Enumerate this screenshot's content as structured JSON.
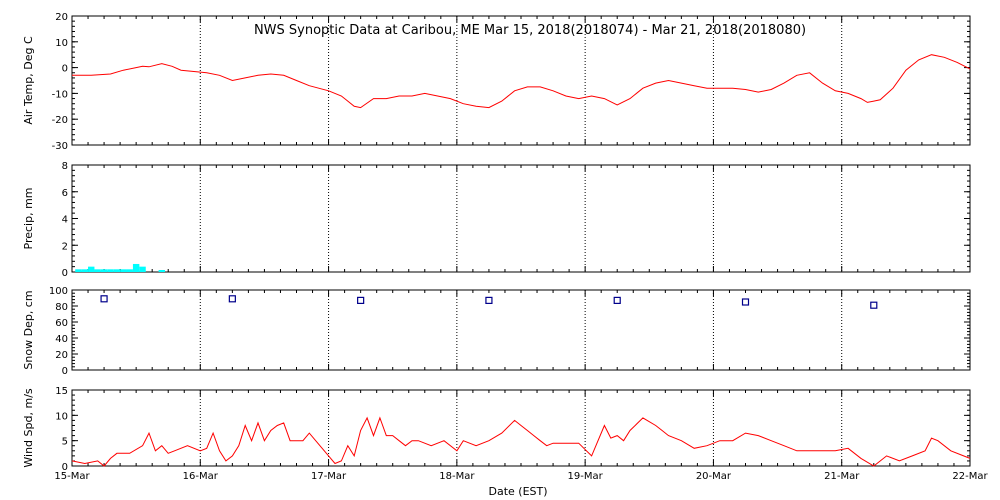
{
  "title": "NWS Synoptic Data at Caribou, ME    Mar 15, 2018(2018074) - Mar 21, 2018(2018080)",
  "xlabel": "Date (EST)",
  "x_ticks": [
    "15-Mar",
    "16-Mar",
    "17-Mar",
    "18-Mar",
    "19-Mar",
    "20-Mar",
    "21-Mar",
    "22-Mar"
  ],
  "colors": {
    "temp": "#ff0000",
    "precip": "#00ffff",
    "snow": "#00008b",
    "wind": "#ff0000",
    "grid": "#000000"
  },
  "chart_data": [
    {
      "type": "line",
      "ylabel": "Air Temp, Deg C",
      "ylim": [
        -30,
        20
      ],
      "y_ticks": [
        "20",
        "10",
        "0",
        "-10",
        "-20",
        "-30"
      ],
      "x_unit": "days since 15-Mar",
      "series": [
        {
          "x": [
            0,
            0.15,
            0.3,
            0.4,
            0.5,
            0.55,
            0.6,
            0.7,
            0.78,
            0.85,
            0.95,
            1.05,
            1.15,
            1.25,
            1.35,
            1.45,
            1.55,
            1.65,
            1.75,
            1.85,
            2.0,
            2.1,
            2.15,
            2.2,
            2.25,
            2.35,
            2.45,
            2.55,
            2.65,
            2.75,
            2.85,
            2.95,
            3.05,
            3.15,
            3.25,
            3.35,
            3.45,
            3.55,
            3.65,
            3.75,
            3.85,
            3.95,
            4.05,
            4.15,
            4.25,
            4.35,
            4.45,
            4.55,
            4.65,
            4.75,
            4.85,
            4.95,
            5.05,
            5.15,
            5.25,
            5.35,
            5.45,
            5.55,
            5.65,
            5.75,
            5.85,
            5.95,
            6.05,
            6.15,
            6.2,
            6.25,
            6.3,
            6.4,
            6.5,
            6.6,
            6.7,
            6.8,
            6.9,
            7.0
          ],
          "y": [
            -3,
            -3,
            -2.5,
            -1,
            0,
            0.5,
            0.3,
            1.5,
            0.5,
            -1,
            -1.5,
            -2,
            -3,
            -5,
            -4,
            -3,
            -2.5,
            -3,
            -5,
            -7,
            -9,
            -11,
            -13,
            -15,
            -15.5,
            -12,
            -12,
            -11,
            -11,
            -10,
            -11,
            -12,
            -14,
            -15,
            -15.5,
            -13,
            -9,
            -7.5,
            -7.5,
            -9,
            -11,
            -12,
            -11,
            -12,
            -14.5,
            -12,
            -8,
            -6,
            -5,
            -6,
            -7,
            -8,
            -8,
            -8,
            -8.5,
            -9.5,
            -8.5,
            -6,
            -3,
            -2,
            -6,
            -9,
            -10,
            -12,
            -13.5,
            -13,
            -12.5,
            -8,
            -1,
            3,
            5,
            4,
            2,
            -0.5
          ]
        }
      ]
    },
    {
      "type": "bar",
      "ylabel": "Precip, mm",
      "ylim": [
        0,
        8
      ],
      "y_ticks": [
        "8",
        "6",
        "4",
        "2",
        "0"
      ],
      "x": [
        0.05,
        0.1,
        0.15,
        0.2,
        0.25,
        0.3,
        0.35,
        0.4,
        0.45,
        0.5,
        0.55,
        0.6,
        0.65,
        0.7
      ],
      "values": [
        0.2,
        0.2,
        0.4,
        0.2,
        0.2,
        0.2,
        0.2,
        0.2,
        0.2,
        0.6,
        0.4,
        0.0,
        0.0,
        0.15
      ]
    },
    {
      "type": "scatter",
      "ylabel": "Snow Dep, cm",
      "ylim": [
        0,
        100
      ],
      "y_ticks": [
        "100",
        "80",
        "60",
        "40",
        "20",
        "0"
      ],
      "x": [
        0.25,
        1.25,
        2.25,
        3.25,
        4.25,
        5.25,
        6.25
      ],
      "values": [
        89,
        89,
        87,
        87,
        87,
        85,
        81
      ]
    },
    {
      "type": "line",
      "ylabel": "Wind Spd, m/s",
      "ylim": [
        0,
        15
      ],
      "y_ticks": [
        "15",
        "10",
        "5",
        "0"
      ],
      "series": [
        {
          "x": [
            0,
            0.1,
            0.2,
            0.25,
            0.3,
            0.35,
            0.45,
            0.55,
            0.6,
            0.65,
            0.7,
            0.75,
            0.8,
            0.9,
            1.0,
            1.05,
            1.1,
            1.15,
            1.2,
            1.25,
            1.3,
            1.35,
            1.4,
            1.45,
            1.5,
            1.55,
            1.6,
            1.65,
            1.7,
            1.75,
            1.8,
            1.85,
            1.9,
            2.0,
            2.05,
            2.1,
            2.15,
            2.2,
            2.25,
            2.3,
            2.35,
            2.4,
            2.45,
            2.5,
            2.55,
            2.6,
            2.65,
            2.7,
            2.8,
            2.9,
            3.0,
            3.05,
            3.15,
            3.25,
            3.35,
            3.45,
            3.5,
            3.55,
            3.6,
            3.65,
            3.7,
            3.75,
            3.85,
            3.95,
            4.05,
            4.15,
            4.2,
            4.25,
            4.3,
            4.35,
            4.45,
            4.55,
            4.6,
            4.65,
            4.75,
            4.85,
            4.95,
            5.05,
            5.15,
            5.25,
            5.35,
            5.45,
            5.55,
            5.65,
            5.75,
            5.85,
            5.95,
            6.05,
            6.15,
            6.25,
            6.35,
            6.45,
            6.55,
            6.65,
            6.7,
            6.75,
            6.85,
            6.95,
            7.0
          ],
          "y": [
            1,
            0.5,
            1,
            0,
            1.5,
            2.5,
            2.5,
            4,
            6.5,
            3,
            4,
            2.5,
            3,
            4,
            3,
            3.5,
            6.5,
            3,
            1,
            2,
            4,
            8,
            5,
            8.5,
            5,
            7,
            8,
            8.5,
            5,
            5,
            5,
            6.5,
            5,
            2,
            0.5,
            1,
            4,
            2,
            7,
            9.5,
            6,
            9.5,
            6,
            6,
            5,
            4,
            5,
            5,
            4,
            5,
            3,
            5,
            4,
            5,
            6.5,
            9,
            8,
            7,
            6,
            5,
            4,
            4.5,
            4.5,
            4.5,
            2,
            8,
            5.5,
            6,
            5,
            7,
            9.5,
            8,
            7,
            6,
            5,
            3.5,
            4,
            5,
            5,
            6.5,
            6,
            5,
            4,
            3,
            3,
            3,
            3,
            3.5,
            1.5,
            0,
            2,
            1,
            2,
            3,
            5.5,
            5,
            3,
            2,
            1.5
          ]
        }
      ]
    }
  ]
}
